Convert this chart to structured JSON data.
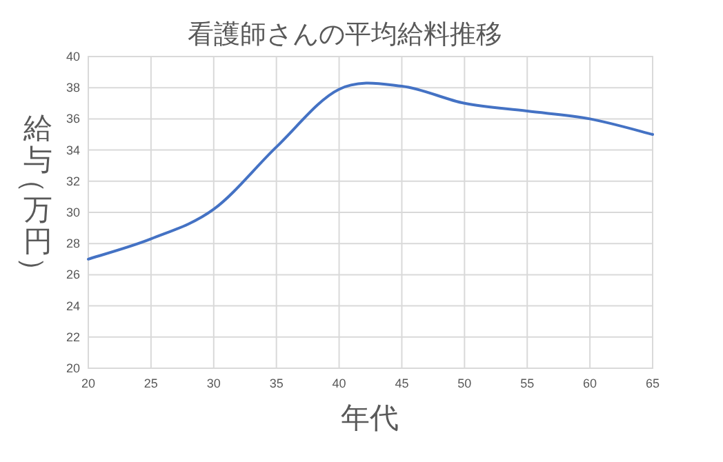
{
  "chart_data": {
    "type": "line",
    "title": "看護師さんの平均給料推移",
    "xlabel": "年代",
    "ylabel": "給与（万円）",
    "x": [
      20,
      25,
      30,
      35,
      40,
      45,
      50,
      55,
      60,
      65
    ],
    "series": [
      {
        "color": "#4472c4",
        "values": [
          27,
          28.3,
          30.2,
          34.2,
          37.9,
          38.1,
          37,
          36.5,
          36,
          35
        ]
      }
    ],
    "xlim": [
      20,
      65
    ],
    "xticks": [
      20,
      25,
      30,
      35,
      40,
      45,
      50,
      55,
      60,
      65
    ],
    "ylim": [
      20,
      40
    ],
    "yticks": [
      20,
      22,
      24,
      26,
      28,
      30,
      32,
      34,
      36,
      38,
      40
    ],
    "grid": true,
    "marker": "none",
    "line_style": "solid"
  }
}
